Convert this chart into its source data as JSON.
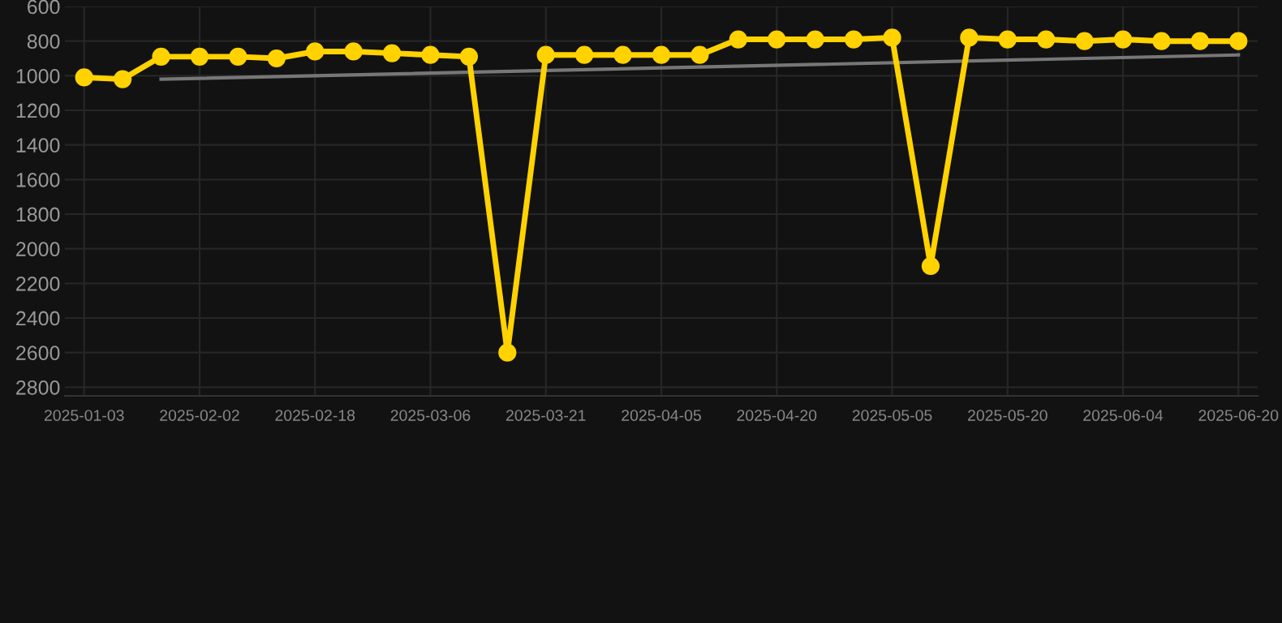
{
  "chart_data": {
    "type": "line",
    "categories": [
      "2025-01-03",
      null,
      null,
      "2025-02-02",
      null,
      null,
      "2025-02-18",
      null,
      null,
      "2025-03-06",
      null,
      null,
      "2025-03-21",
      null,
      null,
      "2025-04-05",
      null,
      null,
      "2025-04-20",
      null,
      null,
      "2025-05-05",
      null,
      null,
      "2025-05-20",
      null,
      null,
      "2025-06-04",
      null,
      null,
      "2025-06-20"
    ],
    "series": [
      {
        "color": "#ffd200",
        "marker": "circle",
        "values": [
          1010,
          1020,
          890,
          890,
          890,
          900,
          860,
          860,
          870,
          880,
          890,
          2600,
          880,
          880,
          880,
          880,
          880,
          790,
          790,
          790,
          790,
          780,
          2100,
          780,
          790,
          790,
          800,
          790,
          800,
          800,
          800
        ]
      },
      {
        "color": "#777777",
        "marker": "none",
        "values": [
          null,
          null,
          1020,
          null,
          null,
          null,
          null,
          null,
          null,
          null,
          null,
          null,
          null,
          null,
          null,
          null,
          null,
          null,
          null,
          null,
          null,
          null,
          null,
          null,
          null,
          null,
          null,
          null,
          null,
          null,
          880
        ]
      }
    ],
    "ylim": [
      2850,
      600
    ],
    "yticks": [
      600,
      800,
      1000,
      1200,
      1400,
      1600,
      1800,
      2000,
      2200,
      2400,
      2600,
      2800
    ],
    "grid": true,
    "legend": false
  }
}
